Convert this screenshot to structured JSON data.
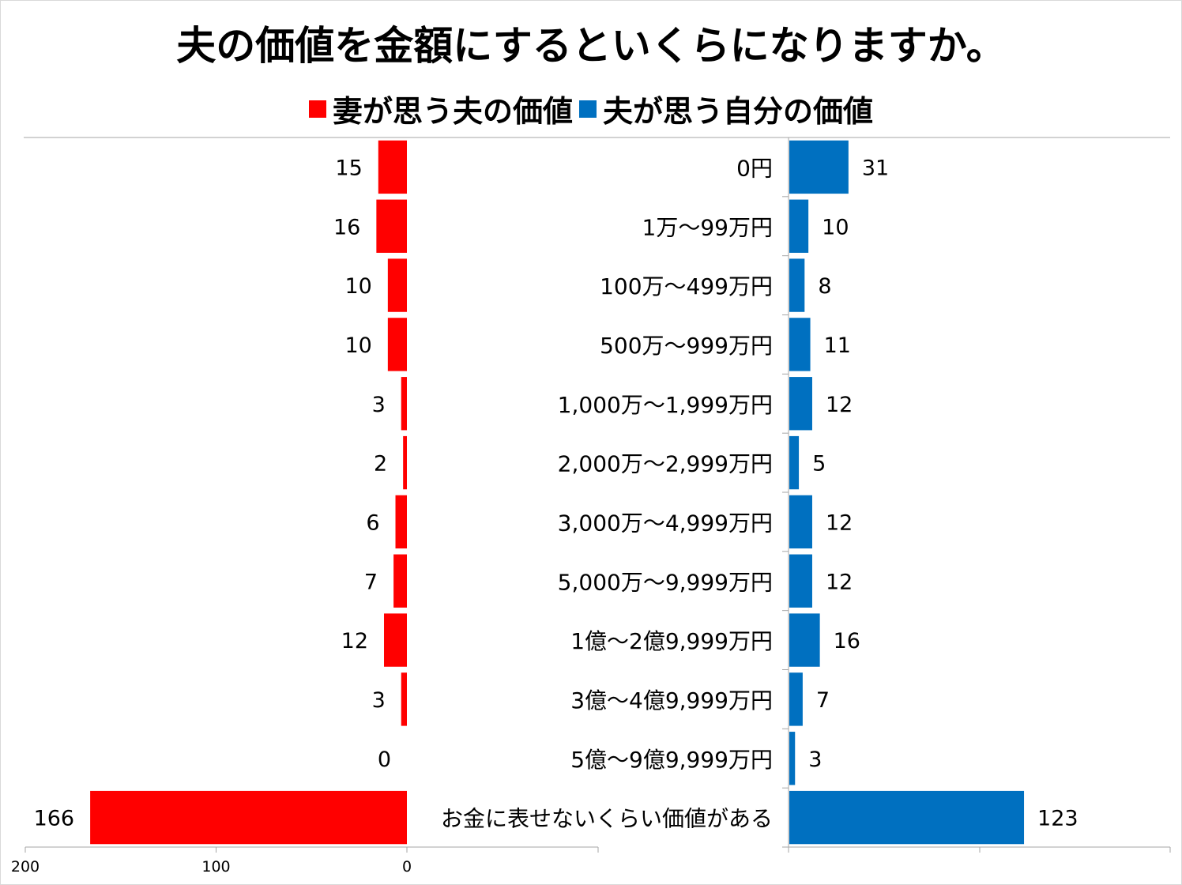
{
  "chart_data": {
    "type": "bar",
    "orientation": "horizontal-butterfly",
    "title": "夫の価値を金額にするといくらになりますか。",
    "categories": [
      "0円",
      "1万～99万円",
      "100万～499万円",
      "500万～999万円",
      "1,000万～1,999万円",
      "2,000万～2,999万円",
      "3,000万～4,999万円",
      "5,000万～9,999万円",
      "1億～2億9,999万円",
      "3億～4億9,999万円",
      "5億～9億9,999万円",
      "お金に表せないくらい価値がある"
    ],
    "series": [
      {
        "name": "妻が思う夫の価値",
        "color": "#ff0000",
        "values": [
          15,
          16,
          10,
          10,
          3,
          2,
          6,
          7,
          12,
          3,
          0,
          166
        ]
      },
      {
        "name": "夫が思う自分の価値",
        "color": "#0070c0",
        "values": [
          31,
          10,
          8,
          11,
          12,
          5,
          12,
          12,
          16,
          7,
          3,
          123
        ]
      }
    ],
    "left_axis": {
      "min": 0,
      "max": 200,
      "ticks": [
        200,
        100,
        0
      ],
      "reversed": true
    },
    "right_axis": {
      "min": 0,
      "max": 200
    },
    "legend_position": "top-center",
    "grid": false
  }
}
